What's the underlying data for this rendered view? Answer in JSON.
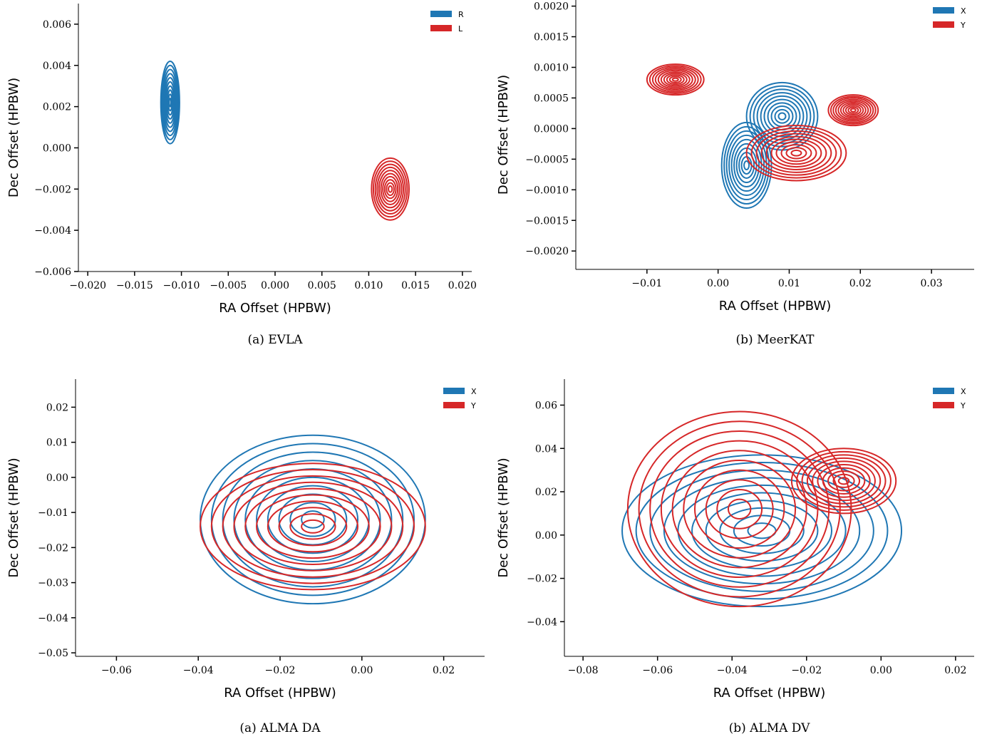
{
  "colors": {
    "blue": "#1f77b4",
    "red": "#d62728"
  },
  "chart_data": [
    {
      "type": "contour",
      "caption": "(a) EVLA",
      "xlabel": "RA Offset (HPBW)",
      "ylabel": "Dec Offset (HPBW)",
      "xlim": [
        -0.021,
        0.021
      ],
      "ylim": [
        -0.006,
        0.007
      ],
      "xticks": [
        "−0.020",
        "−0.015",
        "−0.010",
        "−0.005",
        "0.000",
        "0.005",
        "0.010",
        "0.015",
        "0.020"
      ],
      "xtick_values": [
        -0.02,
        -0.015,
        -0.01,
        -0.005,
        0,
        0.005,
        0.01,
        0.015,
        0.02
      ],
      "yticks": [
        "−0.006",
        "−0.004",
        "−0.002",
        "0.000",
        "0.002",
        "0.004",
        "0.006"
      ],
      "ytick_values": [
        -0.006,
        -0.004,
        -0.002,
        0,
        0.002,
        0.004,
        0.006
      ],
      "legend": "top-right",
      "series": [
        {
          "name": "R",
          "color": "#1f77b4",
          "levels": 10,
          "centers": [
            {
              "x": -0.0112,
              "y": 0.0022,
              "sx": 0.002,
              "sy": 0.004
            }
          ]
        },
        {
          "name": "L",
          "color": "#d62728",
          "levels": 10,
          "centers": [
            {
              "x": 0.0123,
              "y": -0.002,
              "sx": 0.004,
              "sy": 0.003
            }
          ]
        }
      ]
    },
    {
      "type": "contour",
      "caption": "(b) MeerKAT",
      "xlabel": "RA Offset (HPBW)",
      "ylabel": "Dec Offset (HPBW)",
      "xlim": [
        -0.02,
        0.036
      ],
      "ylim": [
        -0.0023,
        0.0021
      ],
      "xticks": [
        "−0.01",
        "0.00",
        "0.01",
        "0.02",
        "0.03"
      ],
      "xtick_values": [
        -0.01,
        0,
        0.01,
        0.02,
        0.03
      ],
      "yticks": [
        "−0.0020",
        "−0.0015",
        "−0.0010",
        "−0.0005",
        "0.0000",
        "0.0005",
        "0.0010",
        "0.0015",
        "0.0020"
      ],
      "ytick_values": [
        -0.002,
        -0.0015,
        -0.001,
        -0.0005,
        0,
        0.0005,
        0.001,
        0.0015,
        0.002
      ],
      "legend": "top-right",
      "series": [
        {
          "name": "X",
          "color": "#1f77b4",
          "levels": 10,
          "centers": [
            {
              "x": 0.004,
              "y": -0.0006,
              "sx": 0.007,
              "sy": 0.0014
            },
            {
              "x": 0.009,
              "y": 0.0002,
              "sx": 0.01,
              "sy": 0.0011
            }
          ]
        },
        {
          "name": "Y",
          "color": "#d62728",
          "levels": 10,
          "centers": [
            {
              "x": 0.011,
              "y": -0.0004,
              "sx": 0.014,
              "sy": 0.0009
            },
            {
              "x": -0.006,
              "y": 0.0008,
              "sx": 0.008,
              "sy": 0.0005
            },
            {
              "x": 0.019,
              "y": 0.0003,
              "sx": 0.007,
              "sy": 0.0005
            }
          ]
        }
      ]
    },
    {
      "type": "contour",
      "caption": "(a) ALMA DA",
      "xlabel": "RA Offset (HPBW)",
      "ylabel": "Dec Offset (HPBW)",
      "xlim": [
        -0.07,
        0.03
      ],
      "ylim": [
        -0.051,
        0.028
      ],
      "xticks": [
        "−0.06",
        "−0.04",
        "−0.02",
        "0.00",
        "0.02"
      ],
      "xtick_values": [
        -0.06,
        -0.04,
        -0.02,
        0,
        0.02
      ],
      "yticks": [
        "−0.05",
        "−0.04",
        "−0.03",
        "−0.02",
        "−0.01",
        "0.00",
        "0.01",
        "0.02"
      ],
      "ytick_values": [
        -0.05,
        -0.04,
        -0.03,
        -0.02,
        -0.01,
        0,
        0.01,
        0.02
      ],
      "legend": "top-right",
      "series": [
        {
          "name": "X",
          "color": "#1f77b4",
          "levels": 10,
          "centers": [
            {
              "x": -0.012,
              "y": -0.012,
              "sx": 0.055,
              "sy": 0.048
            }
          ]
        },
        {
          "name": "Y",
          "color": "#d62728",
          "levels": 10,
          "centers": [
            {
              "x": -0.012,
              "y": -0.014,
              "sx": 0.055,
              "sy": 0.036
            }
          ]
        }
      ]
    },
    {
      "type": "contour",
      "caption": "(b) ALMA DV",
      "xlabel": "RA Offset (HPBW)",
      "ylabel": "Dec Offset (HPBW)",
      "xlim": [
        -0.085,
        0.025
      ],
      "ylim": [
        -0.056,
        0.072
      ],
      "xticks": [
        "−0.08",
        "−0.06",
        "−0.04",
        "−0.02",
        "0.00",
        "0.02"
      ],
      "xtick_values": [
        -0.08,
        -0.06,
        -0.04,
        -0.02,
        0,
        0.02
      ],
      "yticks": [
        "−0.04",
        "−0.02",
        "0.00",
        "0.02",
        "0.04",
        "0.06"
      ],
      "ytick_values": [
        -0.04,
        -0.02,
        0,
        0.02,
        0.04,
        0.06
      ],
      "legend": "top-right",
      "series": [
        {
          "name": "X",
          "color": "#1f77b4",
          "levels": 10,
          "centers": [
            {
              "x": -0.032,
              "y": 0.002,
              "sx": 0.075,
              "sy": 0.07
            }
          ]
        },
        {
          "name": "Y",
          "color": "#d62728",
          "levels": 10,
          "centers": [
            {
              "x": -0.038,
              "y": 0.012,
              "sx": 0.06,
              "sy": 0.09
            },
            {
              "x": -0.01,
              "y": 0.025,
              "sx": 0.028,
              "sy": 0.03
            }
          ]
        }
      ]
    }
  ]
}
